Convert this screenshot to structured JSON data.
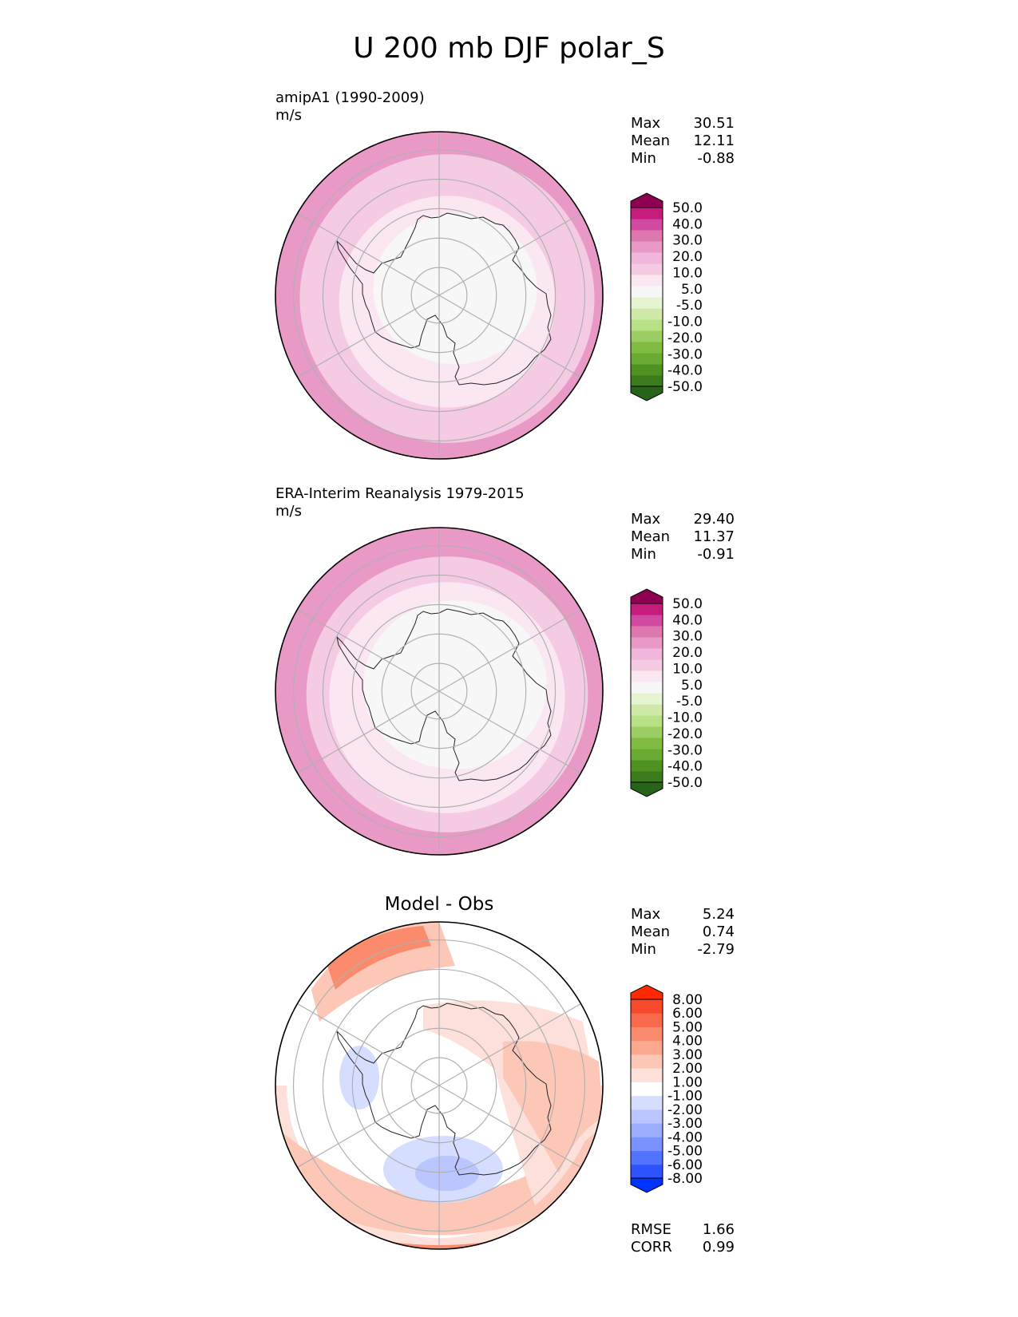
{
  "title": "U 200 mb DJF polar_S",
  "panels": [
    {
      "label_line1": "amipA1 (1990-2009)",
      "label_line2": "m/s",
      "center_title": "",
      "stats": [
        {
          "name": "Max",
          "value": "30.51"
        },
        {
          "name": "Mean",
          "value": "12.11"
        },
        {
          "name": "Min",
          "value": "-0.88"
        }
      ],
      "colorbar": "abs",
      "rings": [
        {
          "level": "20.0",
          "inner_radius_fraction": 0.9
        },
        {
          "level": "10.0",
          "inner_radius_fraction": 0.66
        },
        {
          "level": "5.0",
          "inner_radius_fraction": 0.5
        }
      ]
    },
    {
      "label_line1": "ERA-Interim Reanalysis 1979-2015",
      "label_line2": "m/s",
      "center_title": "",
      "stats": [
        {
          "name": "Max",
          "value": "29.40"
        },
        {
          "name": "Mean",
          "value": "11.37"
        },
        {
          "name": "Min",
          "value": "-0.91"
        }
      ],
      "colorbar": "abs",
      "rings": [
        {
          "level": "20.0",
          "inner_radius_fraction": 0.86
        },
        {
          "level": "10.0",
          "inner_radius_fraction": 0.72
        },
        {
          "level": "5.0",
          "inner_radius_fraction": 0.56
        }
      ]
    },
    {
      "label_line1": "",
      "label_line2": "",
      "center_title": "Model - Obs",
      "stats": [
        {
          "name": "Max",
          "value": "5.24"
        },
        {
          "name": "Mean",
          "value": "0.74"
        },
        {
          "name": "Min",
          "value": "-2.79"
        }
      ],
      "colorbar": "diff",
      "metrics": [
        {
          "name": "RMSE",
          "value": "1.66"
        },
        {
          "name": "CORR",
          "value": "0.99"
        }
      ]
    }
  ],
  "colorbars": {
    "abs": {
      "colors": [
        "#276419",
        "#4d9221",
        "#7fbc41",
        "#b8e186",
        "#e6f5d0",
        "#f7f7f7",
        "#fde0ef",
        "#f1b6da",
        "#de77ae",
        "#c51b7d",
        "#8e0152"
      ],
      "segment_colors": [
        "#276419",
        "#3b7a1d",
        "#4d9221",
        "#6aab33",
        "#7fbc41",
        "#9ccd63",
        "#b8e186",
        "#cfeaa8",
        "#e6f5d0",
        "#f7f7f7",
        "#fbe7f2",
        "#f5cbe3",
        "#f1b6da",
        "#e899c6",
        "#de77ae",
        "#d149a0",
        "#c51b7d",
        "#8e0152"
      ],
      "tick_labels": [
        "-50.0",
        "-40.0",
        "-30.0",
        "-20.0",
        "-10.0",
        "-5.0",
        "5.0",
        "10.0",
        "20.0",
        "30.0",
        "40.0",
        "50.0"
      ]
    },
    "diff": {
      "segment_colors": [
        "#0033ff",
        "#2f52ff",
        "#5273ff",
        "#7a92ff",
        "#9cadff",
        "#b9c6ff",
        "#d6deff",
        "#ffffff",
        "#fde0d9",
        "#fcc7b7",
        "#fba88e",
        "#fa8b6d",
        "#f96a4c",
        "#f74a2b",
        "#ff2a00"
      ],
      "tick_labels": [
        "-8.00",
        "-6.00",
        "-5.00",
        "-4.00",
        "-3.00",
        "-2.00",
        "-1.00",
        "1.00",
        "2.00",
        "3.00",
        "4.00",
        "5.00",
        "6.00",
        "8.00"
      ]
    }
  }
}
